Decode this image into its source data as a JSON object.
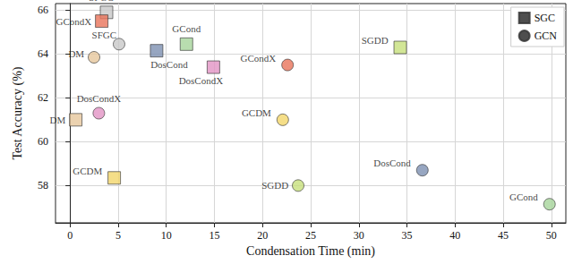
{
  "chart_data": {
    "type": "scatter",
    "xlabel": "Condensation Time (min)",
    "ylabel": "Test Accuracy (%)",
    "xlim": [
      -1.5,
      51.5
    ],
    "ylim": [
      56.3,
      66.3
    ],
    "xticks": [
      0,
      5,
      10,
      15,
      20,
      25,
      30,
      35,
      40,
      45,
      50
    ],
    "yticks": [
      58,
      60,
      62,
      64,
      66
    ],
    "grid": true,
    "legend": "top-right",
    "series": [
      {
        "name": "SGC",
        "marker": "square",
        "color": "#222222",
        "labels": [
          "SFGC",
          "GCondX",
          "DM",
          "GCDM",
          "DosCond",
          "GCond",
          "DosCondX",
          "SGDD"
        ],
        "x": [
          3.8,
          3.3,
          0.6,
          4.6,
          9.0,
          12.1,
          14.9,
          34.3
        ],
        "y": [
          65.9,
          65.5,
          61.0,
          58.35,
          64.15,
          64.45,
          63.4,
          64.3
        ],
        "colors": [
          "#c8c8c8",
          "#e8735a",
          "#e6c79c",
          "#f3d66a",
          "#7d90b2",
          "#a6d49b",
          "#e294c4",
          "#c7e07c"
        ]
      },
      {
        "name": "GCN",
        "marker": "circle",
        "color": "#222222",
        "labels": [
          "SFGC",
          "DM",
          "DosCondX",
          "GCondX",
          "GCDM",
          "SGDD",
          "DosCond",
          "GCond"
        ],
        "x": [
          5.1,
          2.5,
          3.0,
          22.6,
          22.1,
          23.7,
          36.6,
          49.8
        ],
        "y": [
          64.45,
          63.85,
          61.3,
          63.5,
          61.0,
          58.0,
          58.7,
          57.15
        ],
        "colors": [
          "#c8c8c8",
          "#e6c79c",
          "#e294c4",
          "#e8735a",
          "#f3d66a",
          "#c7e07c",
          "#7d90b2",
          "#a6d49b"
        ]
      }
    ]
  }
}
